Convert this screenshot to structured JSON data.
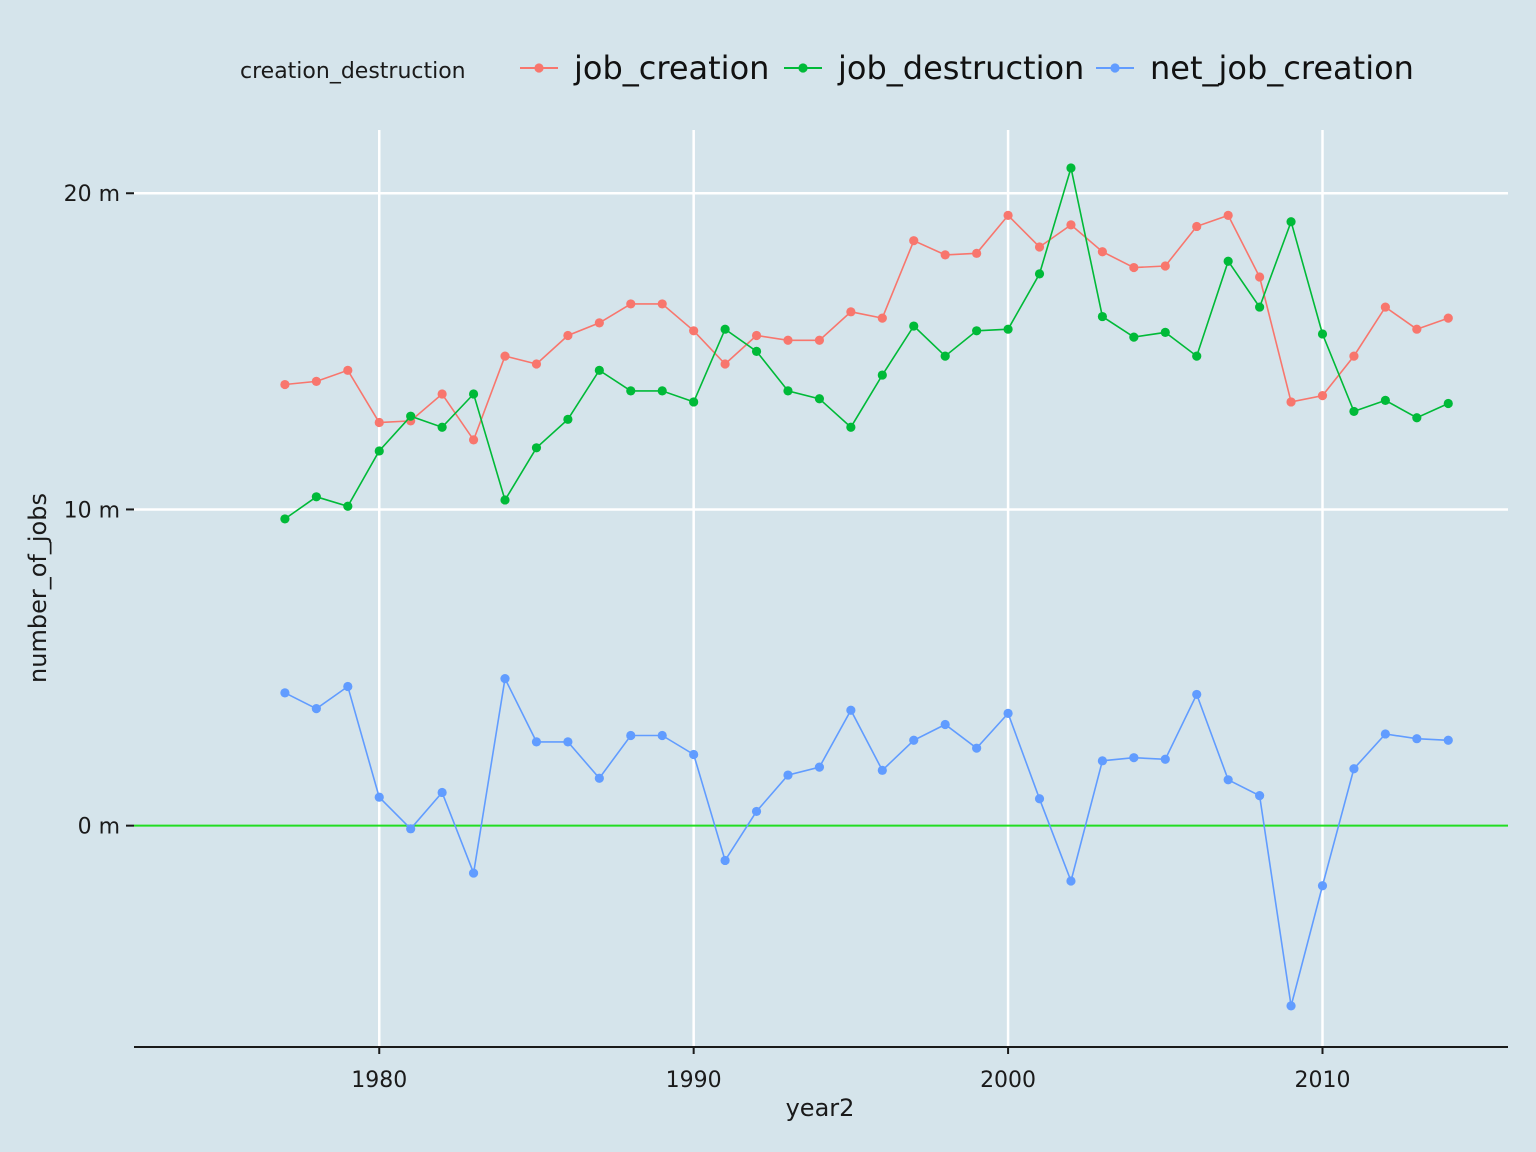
{
  "chart_data": {
    "type": "line",
    "title": "",
    "xlabel": "year2",
    "ylabel": "number_of_jobs",
    "legend_title": "creation_destruction",
    "legend_position": "top",
    "x": [
      1977,
      1978,
      1979,
      1980,
      1981,
      1982,
      1983,
      1984,
      1985,
      1986,
      1987,
      1988,
      1989,
      1990,
      1991,
      1992,
      1993,
      1994,
      1995,
      1996,
      1997,
      1998,
      1999,
      2000,
      2001,
      2002,
      2003,
      2004,
      2005,
      2006,
      2007,
      2008,
      2009,
      2010,
      2011,
      2012,
      2013,
      2014
    ],
    "xlim": [
      1972.2,
      2015.9
    ],
    "ylim": [
      -7.0,
      22.0
    ],
    "x_ticks": [
      1980,
      1990,
      2000,
      2010
    ],
    "x_tick_labels": [
      "1980",
      "1990",
      "2000",
      "2010"
    ],
    "y_ticks": [
      0,
      10,
      20
    ],
    "y_tick_labels": [
      "0 m",
      "10 m",
      "20 m"
    ],
    "reference_line": {
      "y": 0,
      "color": "#22dd22"
    },
    "grid": true,
    "series": [
      {
        "name": "job_creation",
        "color": "#f8766d",
        "values": [
          13.95,
          14.05,
          14.4,
          12.75,
          12.8,
          13.65,
          12.2,
          14.85,
          14.6,
          15.5,
          15.9,
          16.5,
          16.5,
          15.65,
          14.6,
          15.5,
          15.35,
          15.35,
          16.25,
          16.05,
          18.5,
          18.05,
          18.1,
          19.3,
          18.3,
          19.0,
          18.15,
          17.65,
          17.7,
          18.95,
          19.3,
          17.35,
          13.4,
          13.6,
          14.85,
          16.4,
          15.7,
          16.05
        ]
      },
      {
        "name": "job_destruction",
        "color": "#00ba38",
        "values": [
          9.7,
          10.4,
          10.1,
          11.85,
          12.95,
          12.6,
          13.65,
          10.3,
          11.95,
          12.85,
          14.4,
          13.75,
          13.75,
          13.4,
          15.7,
          15.0,
          13.75,
          13.5,
          12.6,
          14.25,
          15.8,
          14.85,
          15.65,
          15.7,
          17.45,
          20.8,
          16.1,
          15.45,
          15.6,
          14.85,
          17.85,
          16.4,
          19.1,
          15.55,
          13.1,
          13.45,
          12.9,
          13.35
        ]
      },
      {
        "name": "net_job_creation",
        "color": "#619cff",
        "values": [
          4.2,
          3.7,
          4.4,
          0.9,
          -0.1,
          1.05,
          -1.5,
          4.65,
          2.65,
          2.65,
          1.5,
          2.85,
          2.85,
          2.25,
          -1.1,
          0.45,
          1.6,
          1.85,
          3.65,
          1.75,
          2.7,
          3.2,
          2.45,
          3.55,
          0.85,
          -1.75,
          2.05,
          2.15,
          2.1,
          4.15,
          1.45,
          0.95,
          -5.7,
          -1.9,
          1.8,
          2.9,
          2.75,
          2.7
        ]
      }
    ]
  }
}
